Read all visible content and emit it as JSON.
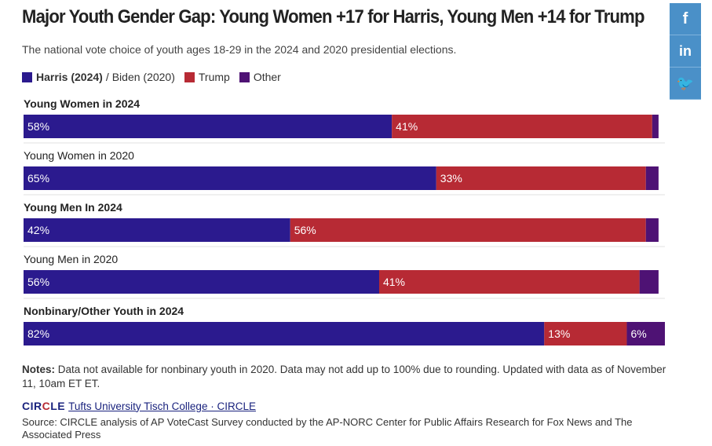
{
  "title": "Major Youth Gender Gap: Young Women +17 for Harris, Young Men +14 for Trump",
  "subtitle": "The national vote choice of youth ages 18-29 in the 2024 and 2020 presidential elections.",
  "legend": {
    "harris_label": "Harris (2024)",
    "separator": "/",
    "biden_label": "Biden (2020)",
    "trump_label": "Trump",
    "other_label": "Other"
  },
  "colors": {
    "democrat": "#2b1a8e",
    "republican": "#b72a34",
    "other": "#4e1274",
    "separator_line": "#e0e0e0"
  },
  "chart_data": {
    "type": "bar",
    "orientation": "horizontal-stacked",
    "categories": [
      "Young Women in 2024",
      "Young Women in 2020",
      "Young Men In 2024",
      "Young Men in 2020",
      "Nonbinary/Other Youth in 2024"
    ],
    "category_bold": [
      true,
      false,
      true,
      false,
      true
    ],
    "series": [
      {
        "name": "Harris (2024) / Biden (2020)",
        "values": [
          58,
          65,
          42,
          56,
          82
        ]
      },
      {
        "name": "Trump",
        "values": [
          41,
          33,
          56,
          41,
          13
        ]
      },
      {
        "name": "Other",
        "values": [
          1,
          2,
          2,
          3,
          6
        ]
      }
    ],
    "value_labels": [
      [
        "58%",
        "41%",
        ""
      ],
      [
        "65%",
        "33%",
        ""
      ],
      [
        "42%",
        "56%",
        ""
      ],
      [
        "56%",
        "41%",
        ""
      ],
      [
        "82%",
        "13%",
        "6%"
      ]
    ],
    "xlim": [
      0,
      101
    ],
    "legend_position": "top-left"
  },
  "notes": {
    "label": "Notes:",
    "text": "Data not available for nonbinary youth in 2020. Data may not add up to 100% due to rounding. Updated with data as of November 11, 10am ET ET."
  },
  "brand": {
    "logo_part1": "CIR",
    "logo_mark": "C",
    "logo_part2": "LE",
    "link_text": "Tufts University Tisch College · CIRCLE"
  },
  "source": "Source: CIRCLE analysis of AP VoteCast Survey conducted by the AP-NORC Center for Public Affairs Research for Fox News and The Associated Press",
  "share": {
    "facebook_glyph": "f",
    "linkedin_glyph": "in",
    "twitter_glyph": "🐦"
  }
}
